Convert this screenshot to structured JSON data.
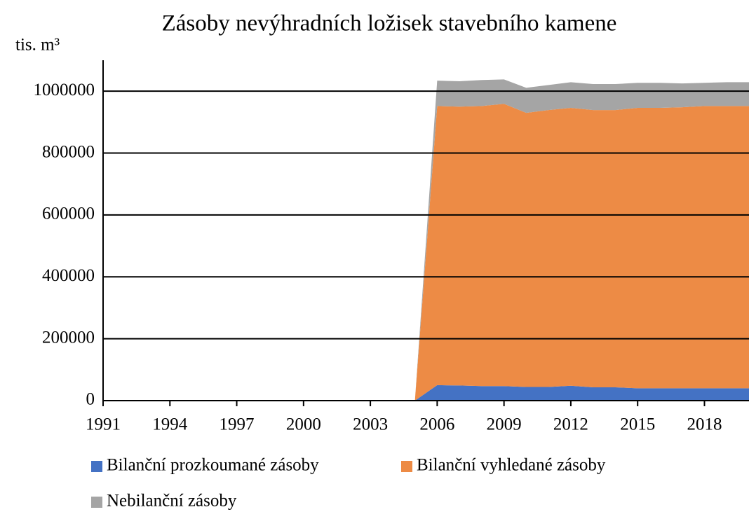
{
  "chart_data": {
    "type": "area",
    "stacked": true,
    "title": "Zásoby nevýhradních ložisek stavebního kamene",
    "y_label": "tis. m³",
    "x": [
      1991,
      1992,
      1993,
      1994,
      1995,
      1996,
      1997,
      1998,
      1999,
      2000,
      2001,
      2002,
      2003,
      2004,
      2005,
      2006,
      2007,
      2008,
      2009,
      2010,
      2011,
      2012,
      2013,
      2014,
      2015,
      2016,
      2017,
      2018,
      2019,
      2020
    ],
    "xlim": [
      1991,
      2020
    ],
    "xticks": [
      1991,
      1994,
      1997,
      2000,
      2003,
      2006,
      2009,
      2012,
      2015,
      2018
    ],
    "ylim": [
      0,
      1100000
    ],
    "yticks": [
      0,
      200000,
      400000,
      600000,
      800000,
      1000000
    ],
    "grid": true,
    "legend": "bottom",
    "series": [
      {
        "name": "Bilanční prozkoumané zásoby",
        "color": "#4472c4",
        "values": [
          0,
          0,
          0,
          0,
          0,
          0,
          0,
          0,
          0,
          0,
          0,
          0,
          0,
          0,
          0,
          50000,
          49000,
          47000,
          47000,
          44000,
          44000,
          48000,
          43000,
          43000,
          40000,
          40000,
          40000,
          40000,
          40000,
          40000
        ]
      },
      {
        "name": "Bilanční vyhledané zásoby",
        "color": "#ed8b45",
        "values": [
          0,
          0,
          0,
          0,
          0,
          0,
          0,
          0,
          0,
          0,
          0,
          0,
          0,
          0,
          0,
          902000,
          901000,
          905000,
          912000,
          886000,
          895000,
          898000,
          896000,
          896000,
          906000,
          906000,
          908000,
          912000,
          912000,
          912000
        ]
      },
      {
        "name": "Nebilanční zásoby",
        "color": "#a5a5a5",
        "values": [
          0,
          0,
          0,
          0,
          0,
          0,
          0,
          0,
          0,
          0,
          0,
          0,
          0,
          0,
          0,
          82000,
          82000,
          84000,
          79000,
          81000,
          81000,
          83000,
          84000,
          84000,
          81000,
          81000,
          77000,
          75000,
          77000,
          77000
        ]
      }
    ]
  }
}
